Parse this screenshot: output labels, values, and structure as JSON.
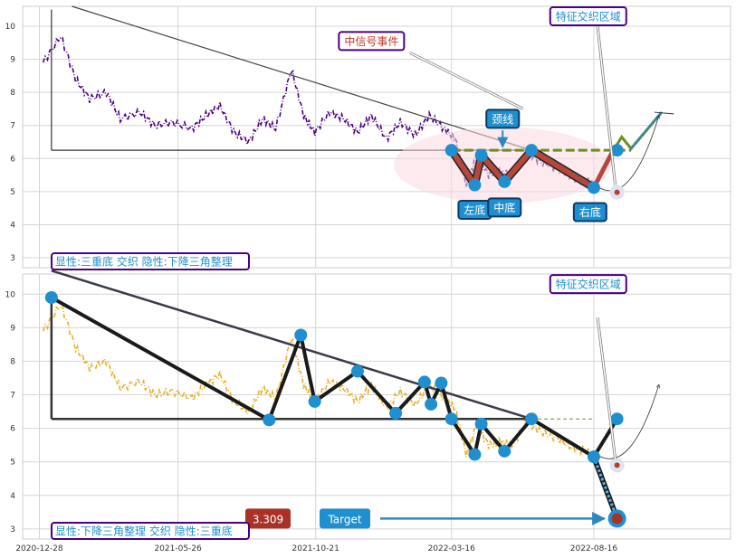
{
  "chart_data": [
    {
      "type": "line",
      "panel": "top",
      "caption": "显性:三重底 交织 隐性:下降三角整理",
      "ylim": [
        2.7,
        10.6
      ],
      "yticks": [
        3,
        4,
        5,
        6,
        7,
        8,
        9,
        10
      ],
      "xlim": [
        "2020-12-10",
        "2023-01-10"
      ],
      "series": [
        {
          "style": "dash-dot",
          "color": "#4b0082",
          "x": [
            "2021-01-01",
            "2021-01-20",
            "2021-02-05",
            "2021-02-20",
            "2021-03-10",
            "2021-03-25",
            "2021-04-15",
            "2021-05-01",
            "2021-05-20",
            "2021-06-10",
            "2021-06-25",
            "2021-07-10",
            "2021-07-25",
            "2021-08-10",
            "2021-08-25",
            "2021-09-08",
            "2021-09-25",
            "2021-10-08",
            "2021-10-20",
            "2021-11-05",
            "2021-11-20",
            "2021-12-05",
            "2021-12-20",
            "2022-01-05",
            "2022-01-20",
            "2022-02-05",
            "2022-02-20",
            "2022-03-08",
            "2022-03-20",
            "2022-04-01",
            "2022-04-12",
            "2022-04-25",
            "2022-05-08",
            "2022-05-20",
            "2022-06-05",
            "2022-06-20",
            "2022-07-08",
            "2022-07-25",
            "2022-08-10",
            "2022-08-20"
          ],
          "y": [
            8.9,
            9.7,
            8.4,
            7.8,
            8.0,
            7.2,
            7.4,
            7.0,
            7.1,
            6.9,
            7.3,
            7.6,
            6.8,
            6.5,
            7.2,
            6.9,
            8.7,
            7.3,
            6.8,
            7.4,
            7.2,
            6.8,
            7.3,
            6.6,
            7.1,
            6.7,
            7.3,
            6.9,
            6.6,
            5.2,
            6.1,
            5.5,
            5.6,
            5.5,
            6.2,
            5.9,
            5.7,
            5.4,
            5.3,
            5.1
          ]
        }
      ],
      "pattern_points": [
        {
          "x": "2022-03-16",
          "y": 6.25
        },
        {
          "x": "2022-04-10",
          "y": 5.2
        },
        {
          "x": "2022-04-17",
          "y": 6.1
        },
        {
          "x": "2022-05-12",
          "y": 5.3
        },
        {
          "x": "2022-06-10",
          "y": 6.25
        },
        {
          "x": "2022-08-16",
          "y": 5.12
        },
        {
          "x": "2022-09-10",
          "y": 6.25
        }
      ],
      "neckline": {
        "x": [
          "2022-03-16",
          "2022-09-25"
        ],
        "y": 6.25,
        "color": "#6b8e23"
      },
      "labels": {
        "neckline": "颈线",
        "left_bottom": "左底",
        "mid_bottom": "中底",
        "right_bottom": "右底",
        "signal": "中信号事件",
        "region": "特征交织区域"
      }
    },
    {
      "type": "line",
      "panel": "bottom",
      "caption": "显性:下降三角整理 交织 隐性:三重底",
      "ylim": [
        2.7,
        10.6
      ],
      "yticks": [
        3,
        4,
        5,
        6,
        7,
        8,
        9,
        10
      ],
      "xlim": [
        "2020-12-10",
        "2023-01-10"
      ],
      "xticks": [
        "2020-12-28",
        "2021-05-26",
        "2021-10-21",
        "2022-03-16",
        "2022-08-16"
      ],
      "series": [
        {
          "style": "dash-dot",
          "color": "#e8b030",
          "x": [
            "2021-01-01",
            "2021-01-20",
            "2021-02-05",
            "2021-02-20",
            "2021-03-10",
            "2021-03-25",
            "2021-04-15",
            "2021-05-01",
            "2021-05-20",
            "2021-06-10",
            "2021-06-25",
            "2021-07-10",
            "2021-07-25",
            "2021-08-10",
            "2021-08-25",
            "2021-09-08",
            "2021-09-25",
            "2021-10-08",
            "2021-10-20",
            "2021-11-05",
            "2021-11-20",
            "2021-12-05",
            "2021-12-20",
            "2022-01-05",
            "2022-01-20",
            "2022-02-05",
            "2022-02-20",
            "2022-03-08",
            "2022-03-20",
            "2022-04-01",
            "2022-04-12",
            "2022-04-25",
            "2022-05-08",
            "2022-05-20",
            "2022-06-05",
            "2022-06-20",
            "2022-07-08",
            "2022-07-25",
            "2022-08-10",
            "2022-08-20"
          ],
          "y": [
            8.9,
            9.7,
            8.4,
            7.8,
            8.0,
            7.2,
            7.4,
            7.0,
            7.1,
            6.9,
            7.3,
            7.6,
            6.8,
            6.5,
            7.2,
            6.9,
            8.7,
            7.3,
            6.8,
            7.4,
            7.2,
            6.8,
            7.3,
            6.6,
            7.1,
            6.7,
            7.3,
            6.9,
            6.6,
            5.2,
            6.1,
            5.5,
            5.6,
            5.5,
            6.2,
            5.9,
            5.7,
            5.4,
            5.3,
            5.1
          ]
        }
      ],
      "pattern_points": [
        {
          "x": "2021-01-10",
          "y": 9.9
        },
        {
          "x": "2021-09-01",
          "y": 6.25
        },
        {
          "x": "2021-10-05",
          "y": 8.78
        },
        {
          "x": "2021-10-20",
          "y": 6.8
        },
        {
          "x": "2021-12-05",
          "y": 7.7
        },
        {
          "x": "2022-01-15",
          "y": 6.45
        },
        {
          "x": "2022-02-15",
          "y": 7.38
        },
        {
          "x": "2022-02-22",
          "y": 6.72
        },
        {
          "x": "2022-03-05",
          "y": 7.35
        },
        {
          "x": "2022-03-16",
          "y": 6.28
        },
        {
          "x": "2022-04-10",
          "y": 5.22
        },
        {
          "x": "2022-04-17",
          "y": 6.13
        },
        {
          "x": "2022-05-12",
          "y": 5.32
        },
        {
          "x": "2022-06-10",
          "y": 6.28
        },
        {
          "x": "2022-08-16",
          "y": 5.15
        },
        {
          "x": "2022-09-10",
          "y": 6.28
        }
      ],
      "target": {
        "x": "2022-09-10",
        "y": 3.309,
        "value_label": "3.309",
        "label": "Target"
      },
      "labels": {
        "region": "特征交织区域"
      }
    }
  ]
}
